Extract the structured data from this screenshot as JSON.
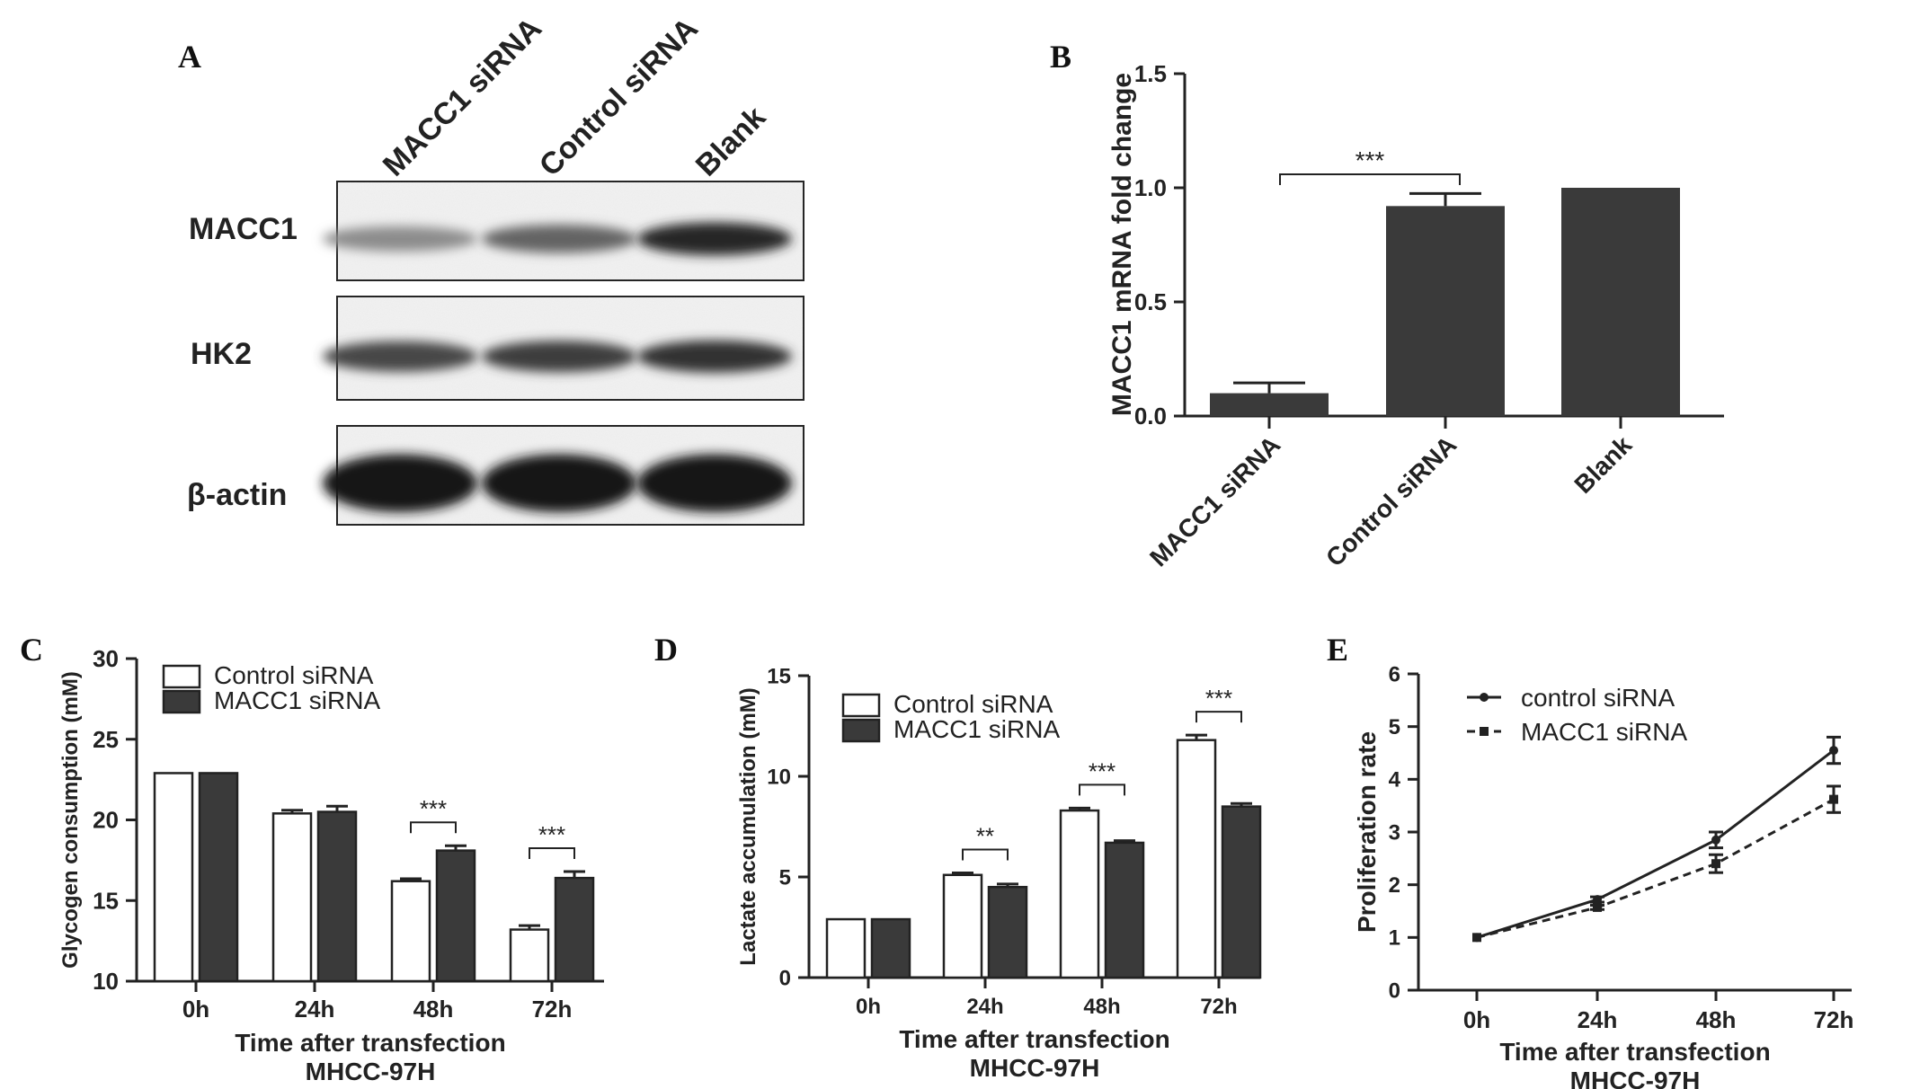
{
  "panel_a": {
    "letter": "A",
    "lanes": [
      "MACC1 siRNA",
      "Control siRNA",
      "Blank"
    ],
    "rows": [
      {
        "label": "MACC1",
        "intensity": [
          0.35,
          0.55,
          0.85
        ]
      },
      {
        "label": "HK2",
        "intensity": [
          0.7,
          0.75,
          0.8
        ]
      },
      {
        "label": "β-actin",
        "intensity": [
          0.95,
          0.95,
          0.95
        ]
      }
    ]
  },
  "chart_data": [
    {
      "panel": "B",
      "type": "bar",
      "title": "",
      "xlabel": "",
      "ylabel": "MACC1 mRNA fold change",
      "categories": [
        "MACC1 siRNA",
        "Control siRNA",
        "Blank"
      ],
      "values": [
        0.1,
        0.92,
        1.0
      ],
      "errors": [
        0.045,
        0.055,
        0
      ],
      "ylim": [
        0,
        1.5
      ],
      "yticks": [
        "0.0",
        "0.5",
        "1.0",
        "1.5"
      ],
      "annotations": [
        {
          "text": "***",
          "from": 0,
          "to": 1
        }
      ],
      "color": "#3a3a3a"
    },
    {
      "panel": "C",
      "type": "bar",
      "title": "",
      "xlabel": "Time after transfection",
      "subtitle": "MHCC-97H",
      "ylabel": "Glycogen consumption (mM)",
      "categories": [
        "0h",
        "24h",
        "48h",
        "72h"
      ],
      "series": [
        {
          "name": "Control siRNA",
          "values": [
            22.9,
            20.4,
            16.2,
            13.2
          ],
          "errors": [
            0,
            0.2,
            0.15,
            0.25
          ],
          "fill": "#ffffff"
        },
        {
          "name": "MACC1 siRNA",
          "values": [
            22.9,
            20.5,
            18.1,
            16.4
          ],
          "errors": [
            0,
            0.35,
            0.3,
            0.4
          ],
          "fill": "#3a3a3a"
        }
      ],
      "ylim": [
        10,
        30
      ],
      "yticks": [
        "10",
        "15",
        "20",
        "25",
        "30"
      ],
      "annotations": [
        {
          "text": "***",
          "category": 2
        },
        {
          "text": "***",
          "category": 3
        }
      ],
      "legend": "top-left"
    },
    {
      "panel": "D",
      "type": "bar",
      "title": "",
      "xlabel": "Time after transfection",
      "subtitle": "MHCC-97H",
      "ylabel": "Lactate accumulation (mM)",
      "categories": [
        "0h",
        "24h",
        "48h",
        "72h"
      ],
      "series": [
        {
          "name": "Control siRNA",
          "values": [
            2.9,
            5.1,
            8.3,
            11.8
          ],
          "errors": [
            0,
            0.1,
            0.12,
            0.25
          ],
          "fill": "#ffffff"
        },
        {
          "name": "MACC1 siRNA",
          "values": [
            2.9,
            4.5,
            6.7,
            8.5
          ],
          "errors": [
            0,
            0.15,
            0.1,
            0.15
          ],
          "fill": "#3a3a3a"
        }
      ],
      "ylim": [
        0,
        15
      ],
      "yticks": [
        "0",
        "5",
        "10",
        "15"
      ],
      "annotations": [
        {
          "text": "**",
          "category": 1
        },
        {
          "text": "***",
          "category": 2
        },
        {
          "text": "***",
          "category": 3
        }
      ],
      "legend": "top-left"
    },
    {
      "panel": "E",
      "type": "line",
      "title": "",
      "xlabel": "Time after transfection",
      "subtitle": "MHCC-97H",
      "ylabel": "Proliferation rate",
      "categories": [
        "0h",
        "24h",
        "48h",
        "72h"
      ],
      "series": [
        {
          "name": "control siRNA",
          "values": [
            1.0,
            1.72,
            2.85,
            4.55
          ],
          "errors": [
            0.02,
            0.05,
            0.15,
            0.25
          ],
          "dash": "solid"
        },
        {
          "name": "MACC1 siRNA",
          "values": [
            1.0,
            1.57,
            2.4,
            3.62
          ],
          "errors": [
            0.02,
            0.04,
            0.17,
            0.25
          ],
          "dash": "dashed"
        }
      ],
      "ylim": [
        0,
        6
      ],
      "yticks": [
        "0",
        "1",
        "2",
        "3",
        "4",
        "5",
        "6"
      ],
      "legend": "top-left"
    }
  ]
}
